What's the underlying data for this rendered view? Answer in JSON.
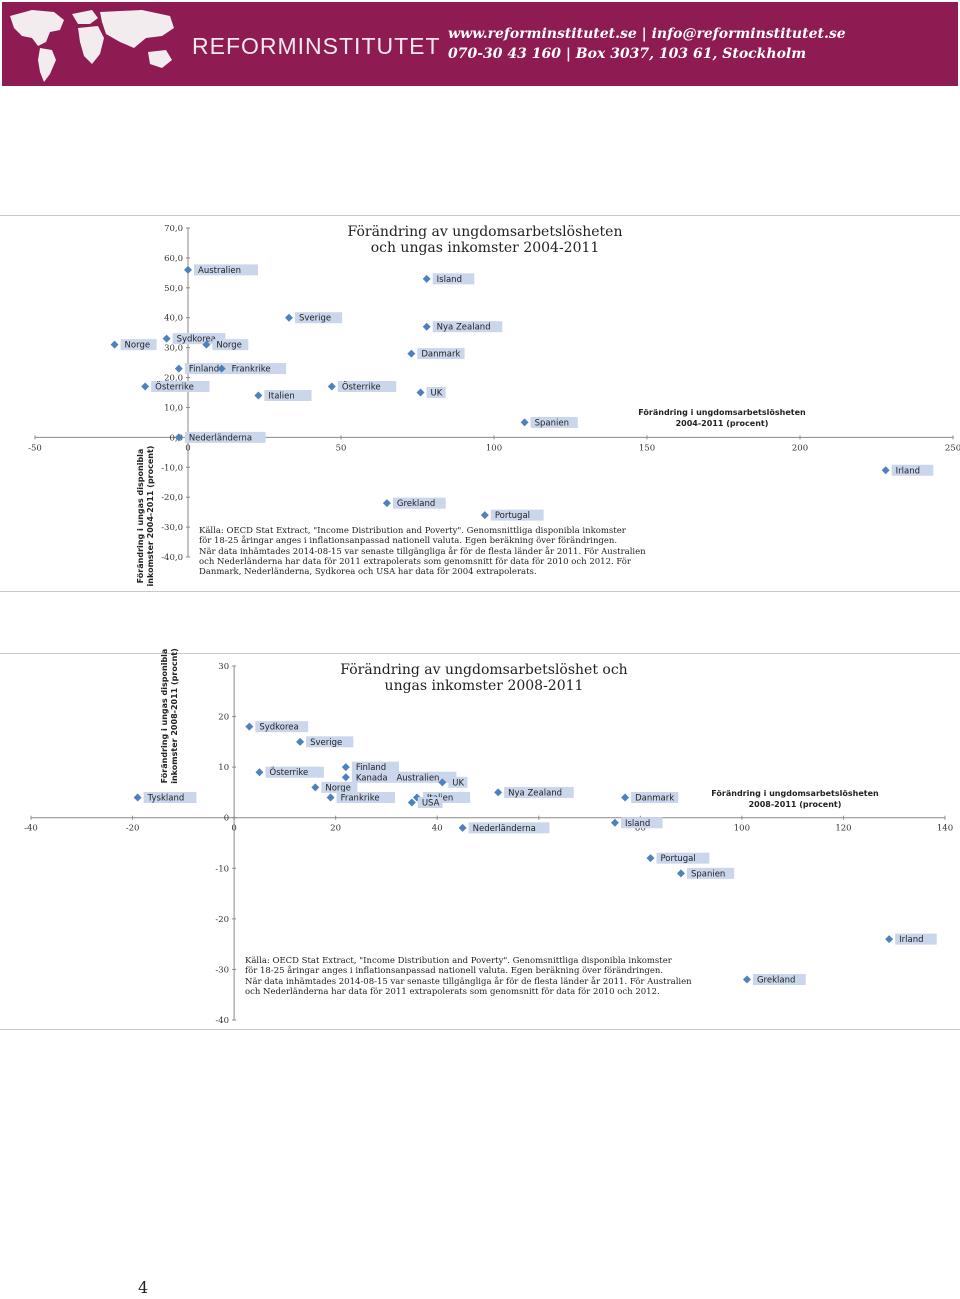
{
  "header": {
    "brand": "REFORMINSTITUTET",
    "contact_line1": "www.reforminstitutet.se  |  info@reforminstitutet.se",
    "contact_line2": "070-30 43 160  |  Box 3037, 103 61, Stockholm",
    "background_color": "#8e1b52"
  },
  "chart_data": [
    {
      "type": "scatter",
      "title": "Förändring av ungdomsarbetslösheten\noch ungas inkomster 2004-2011",
      "xlabel": "Förändring i ungdomsarbetslösheten\n2004-2011 (procent)",
      "ylabel": "Förändring i ungas disponibla\ninkomster 2004-2011 (procent)",
      "xlim": [
        -50,
        250
      ],
      "ylim": [
        -40,
        70
      ],
      "x_ticks": [
        "-50",
        "0",
        "50",
        "100",
        "150",
        "200",
        "250"
      ],
      "y_ticks": [
        "70,0",
        "60,0",
        "50,0",
        "40,0",
        "30,0",
        "20,0",
        "10,0",
        "0,0",
        "-10,0",
        "-20,0",
        "-30,0",
        "-40,0"
      ],
      "marker_color": "#4f81bd",
      "points": [
        {
          "label": "Australien",
          "x": 0,
          "y": 56
        },
        {
          "label": "Island",
          "x": 78,
          "y": 53
        },
        {
          "label": "Sverige",
          "x": 33,
          "y": 40
        },
        {
          "label": "Nya Zealand",
          "x": 78,
          "y": 37
        },
        {
          "label": "Danmark",
          "x": 73,
          "y": 28
        },
        {
          "label": "Sydkorea",
          "x": -7,
          "y": 33
        },
        {
          "label": "Norge",
          "x": -24,
          "y": 31
        },
        {
          "label": "Norge",
          "x": 6,
          "y": 31
        },
        {
          "label": "Finland",
          "x": -3,
          "y": 23
        },
        {
          "label": "Frankrike",
          "x": 11,
          "y": 23
        },
        {
          "label": "Österrike",
          "x": -14,
          "y": 17
        },
        {
          "label": "Österrike",
          "x": 47,
          "y": 17
        },
        {
          "label": "UK",
          "x": 76,
          "y": 15
        },
        {
          "label": "Italien",
          "x": 23,
          "y": 14
        },
        {
          "label": "Spanien",
          "x": 110,
          "y": 5
        },
        {
          "label": "Nederländerna",
          "x": -3,
          "y": 0
        },
        {
          "label": "Irland",
          "x": 228,
          "y": -11
        },
        {
          "label": "Grekland",
          "x": 65,
          "y": -22
        },
        {
          "label": "Portugal",
          "x": 97,
          "y": -26
        }
      ],
      "source": "Källa: OECD Stat Extract, \"Income Distribution and Poverty\". Genomsnittliga disponibla inkomster\nför 18-25 åringar anges i inflationsanpassad nationell valuta. Egen beräkning över förändringen.\nNär data inhämtades 2014-08-15 var senaste tillgängliga år för de flesta länder år 2011. För Australien\noch Nederländerna har data för 2011 extrapolerats som genomsnitt för data för 2010 och 2012. För\nDanmark, Nederländerna, Sydkorea och USA har data för 2004 extrapolerats."
    },
    {
      "type": "scatter",
      "title": "Förändring av ungdomsarbetslöshet\noch ungas inkomster 2008-2011",
      "xlabel": "Förändring i ungdomsarbetslösheten\n2008-2011 (procent)",
      "ylabel": "Förändring i ungas disponibla\ninkomster 2008-2011 (procnt)",
      "xlim": [
        -40,
        140
      ],
      "ylim": [
        -40,
        30
      ],
      "x_ticks": [
        "-40",
        "-20",
        "0",
        "20",
        "40",
        "60",
        "80",
        "100",
        "120",
        "140"
      ],
      "y_ticks": [
        "30",
        "20",
        "10",
        "0",
        "-10",
        "-20",
        "-30",
        "-40"
      ],
      "marker_color": "#4f81bd",
      "points": [
        {
          "label": "Sydkorea",
          "x": 3,
          "y": 18
        },
        {
          "label": "Sverige",
          "x": 13,
          "y": 15
        },
        {
          "label": "Österrike",
          "x": 5,
          "y": 9
        },
        {
          "label": "Finland",
          "x": 22,
          "y": 10
        },
        {
          "label": "Australien",
          "x": 30,
          "y": 8
        },
        {
          "label": "Kanada",
          "x": 22,
          "y": 8
        },
        {
          "label": "UK",
          "x": 41,
          "y": 7
        },
        {
          "label": "Tyskland",
          "x": -19,
          "y": 4
        },
        {
          "label": "Norge",
          "x": 16,
          "y": 6
        },
        {
          "label": "Frankrike",
          "x": 19,
          "y": 4
        },
        {
          "label": "Italien",
          "x": 36,
          "y": 4
        },
        {
          "label": "USA",
          "x": 35,
          "y": 3
        },
        {
          "label": "Nya Zealand",
          "x": 52,
          "y": 5
        },
        {
          "label": "Danmark",
          "x": 77,
          "y": 4
        },
        {
          "label": "Nederländerna",
          "x": 45,
          "y": -2
        },
        {
          "label": "Island",
          "x": 75,
          "y": -1
        },
        {
          "label": "Portugal",
          "x": 82,
          "y": -8
        },
        {
          "label": "Spanien",
          "x": 88,
          "y": -11
        },
        {
          "label": "Irland",
          "x": 129,
          "y": -24
        },
        {
          "label": "Grekland",
          "x": 101,
          "y": -32
        }
      ],
      "source": "Källa: OECD Stat Extract, \"Income Distribution and Poverty\". Genomsnittliga disponibla inkomster\nför 18-25 åringar anges i inflationsanpassad nationell valuta. Egen beräkning över förändringen.\nNär data inhämtades 2014-08-15 var senaste tillgängliga år för de flesta länder år 2011. För Australien\noch Nederländerna har data för 2011 extrapolerats som genomsnitt för data för 2010 och 2012."
    }
  ],
  "page_number": "4"
}
